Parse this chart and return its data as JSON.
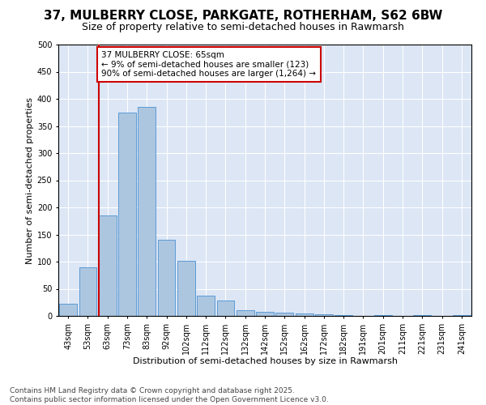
{
  "title1": "37, MULBERRY CLOSE, PARKGATE, ROTHERHAM, S62 6BW",
  "title2": "Size of property relative to semi-detached houses in Rawmarsh",
  "xlabel": "Distribution of semi-detached houses by size in Rawmarsh",
  "ylabel": "Number of semi-detached properties",
  "categories": [
    "43sqm",
    "53sqm",
    "63sqm",
    "73sqm",
    "83sqm",
    "92sqm",
    "102sqm",
    "112sqm",
    "122sqm",
    "132sqm",
    "142sqm",
    "152sqm",
    "162sqm",
    "172sqm",
    "182sqm",
    "191sqm",
    "201sqm",
    "211sqm",
    "221sqm",
    "231sqm",
    "241sqm"
  ],
  "values": [
    22,
    90,
    185,
    375,
    385,
    140,
    101,
    38,
    28,
    11,
    8,
    6,
    4,
    3,
    1,
    0,
    2,
    0,
    1,
    0,
    1
  ],
  "bar_color": "#adc6e0",
  "bar_edge_color": "#5b9bd5",
  "vline_color": "#cc0000",
  "vline_x": 1.55,
  "annotation_text": "37 MULBERRY CLOSE: 65sqm\n← 9% of semi-detached houses are smaller (123)\n90% of semi-detached houses are larger (1,264) →",
  "annotation_box_color": "#ffffff",
  "annotation_box_edge_color": "#cc0000",
  "ylim": [
    0,
    500
  ],
  "yticks": [
    0,
    50,
    100,
    150,
    200,
    250,
    300,
    350,
    400,
    450,
    500
  ],
  "background_color": "#dce6f5",
  "footer": "Contains HM Land Registry data © Crown copyright and database right 2025.\nContains public sector information licensed under the Open Government Licence v3.0.",
  "title1_fontsize": 11,
  "title2_fontsize": 9,
  "xlabel_fontsize": 8,
  "ylabel_fontsize": 8,
  "annotation_fontsize": 7.5,
  "footer_fontsize": 6.5,
  "tick_fontsize": 7
}
